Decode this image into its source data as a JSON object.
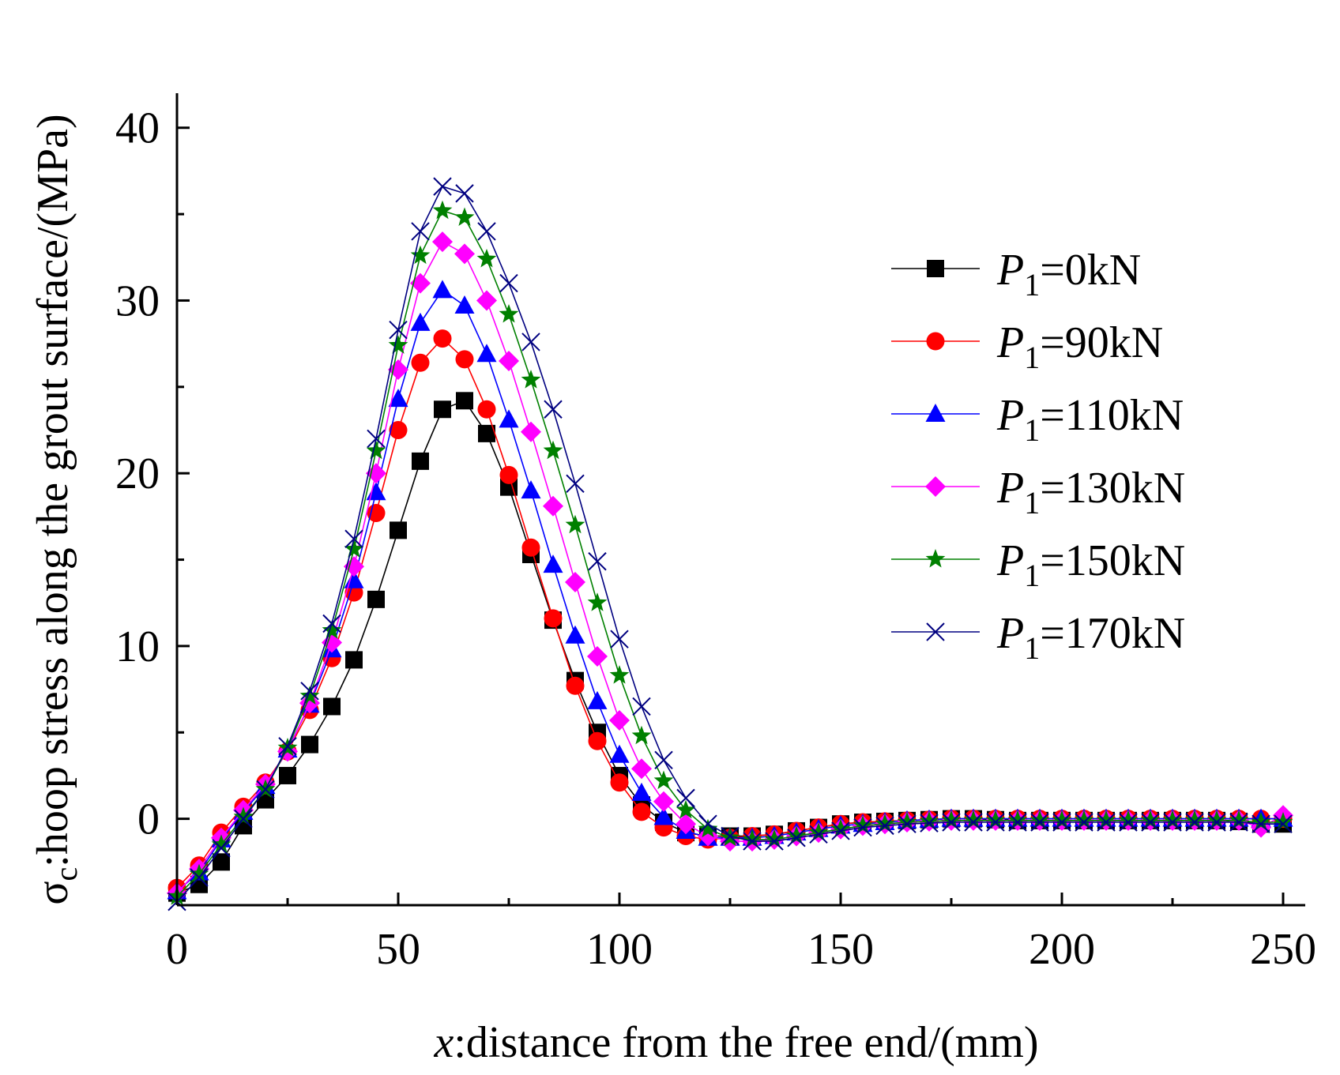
{
  "chart_data": {
    "type": "line",
    "title": "",
    "xlabel_var": "x",
    "xlabel_text": ":distance from the free end/(mm)",
    "ylabel_var": "σ",
    "ylabel_sub": "c",
    "ylabel_text": ":hoop stress along the grout surface/(MPa)",
    "xlim": [
      0,
      255
    ],
    "ylim": [
      -5,
      42
    ],
    "xticks": [
      0,
      50,
      100,
      150,
      200,
      250
    ],
    "yticks": [
      0,
      10,
      20,
      30,
      40
    ],
    "legend_position": "top-right",
    "x": [
      0,
      5,
      10,
      15,
      20,
      25,
      30,
      35,
      40,
      45,
      50,
      55,
      60,
      65,
      70,
      75,
      80,
      85,
      90,
      95,
      100,
      105,
      110,
      115,
      120,
      125,
      130,
      135,
      140,
      145,
      150,
      155,
      160,
      165,
      170,
      175,
      180,
      185,
      190,
      195,
      200,
      205,
      210,
      215,
      220,
      225,
      230,
      235,
      240,
      245,
      250
    ],
    "series": [
      {
        "name": "P1=0kN",
        "legend_var": "P",
        "legend_sub": "1",
        "legend_text": "=0kN",
        "color": "#000000",
        "marker": "square",
        "values": [
          -4.3,
          -3.8,
          -2.5,
          -0.4,
          1.1,
          2.5,
          4.3,
          6.5,
          9.2,
          12.7,
          16.7,
          20.7,
          23.7,
          24.2,
          22.3,
          19.2,
          15.3,
          11.5,
          8.0,
          5.0,
          2.5,
          0.8,
          -0.2,
          -0.8,
          -1.0,
          -1.0,
          -1.0,
          -0.9,
          -0.7,
          -0.5,
          -0.3,
          -0.2,
          -0.15,
          -0.1,
          -0.05,
          0.0,
          0.0,
          -0.05,
          -0.1,
          -0.1,
          -0.1,
          -0.1,
          -0.1,
          -0.1,
          -0.1,
          -0.1,
          -0.1,
          -0.1,
          -0.15,
          -0.3,
          -0.3
        ]
      },
      {
        "name": "P1=90kN",
        "legend_var": "P",
        "legend_sub": "1",
        "legend_text": "=90kN",
        "color": "#ff0000",
        "marker": "circle",
        "values": [
          -4.0,
          -2.7,
          -0.8,
          0.7,
          2.1,
          3.9,
          6.3,
          9.3,
          13.1,
          17.7,
          22.5,
          26.4,
          27.8,
          26.6,
          23.7,
          19.9,
          15.7,
          11.6,
          7.7,
          4.5,
          2.1,
          0.4,
          -0.5,
          -1.0,
          -1.2,
          -1.1,
          -1.0,
          -0.9,
          -0.7,
          -0.5,
          -0.3,
          -0.2,
          -0.15,
          -0.1,
          -0.05,
          0.0,
          0.0,
          0.0,
          0.0,
          0.0,
          0.0,
          0.0,
          0.0,
          0.0,
          0.0,
          0.0,
          0.0,
          0.0,
          0.0,
          0.0,
          0.0
        ]
      },
      {
        "name": "P1=110kN",
        "legend_var": "P",
        "legend_sub": "1",
        "legend_text": "=110kN",
        "color": "#0000ff",
        "marker": "triangle",
        "values": [
          -4.2,
          -3.1,
          -1.2,
          0.4,
          1.9,
          4.0,
          6.6,
          9.8,
          13.8,
          18.9,
          24.3,
          28.7,
          30.6,
          29.7,
          26.9,
          23.1,
          19.0,
          14.7,
          10.6,
          6.8,
          3.7,
          1.5,
          0.1,
          -0.7,
          -1.1,
          -1.1,
          -1.1,
          -1.0,
          -0.8,
          -0.6,
          -0.4,
          -0.3,
          -0.2,
          -0.1,
          -0.05,
          0.0,
          0.0,
          0.0,
          0.0,
          0.0,
          0.0,
          0.0,
          0.0,
          0.0,
          0.0,
          0.0,
          0.0,
          0.0,
          0.0,
          0.0,
          0.0
        ]
      },
      {
        "name": "P1=130kN",
        "legend_var": "P",
        "legend_sub": "1",
        "legend_text": "=130kN",
        "color": "#ff00ff",
        "marker": "diamond",
        "values": [
          -4.3,
          -2.9,
          -1.1,
          0.5,
          2.0,
          3.9,
          6.7,
          10.2,
          14.6,
          20.0,
          26.0,
          31.0,
          33.4,
          32.7,
          30.0,
          26.5,
          22.4,
          18.1,
          13.7,
          9.4,
          5.7,
          2.9,
          1.0,
          -0.3,
          -1.0,
          -1.3,
          -1.3,
          -1.2,
          -1.0,
          -0.8,
          -0.6,
          -0.4,
          -0.3,
          -0.2,
          -0.15,
          -0.1,
          -0.1,
          -0.1,
          -0.1,
          -0.1,
          -0.1,
          -0.1,
          -0.1,
          -0.1,
          -0.1,
          -0.1,
          -0.1,
          -0.1,
          -0.1,
          -0.5,
          0.2
        ]
      },
      {
        "name": "P1=150kN",
        "legend_var": "P",
        "legend_sub": "1",
        "legend_text": "=150kN",
        "color": "#008000",
        "marker": "star",
        "values": [
          -4.5,
          -3.2,
          -1.5,
          0.1,
          1.7,
          4.1,
          7.1,
          10.9,
          15.6,
          21.3,
          27.4,
          32.6,
          35.2,
          34.8,
          32.4,
          29.2,
          25.4,
          21.3,
          17.0,
          12.5,
          8.3,
          4.8,
          2.2,
          0.5,
          -0.6,
          -1.1,
          -1.2,
          -1.2,
          -1.0,
          -0.8,
          -0.6,
          -0.4,
          -0.3,
          -0.2,
          -0.15,
          -0.1,
          -0.1,
          -0.1,
          -0.1,
          -0.1,
          -0.1,
          -0.1,
          -0.1,
          -0.1,
          -0.1,
          -0.1,
          -0.1,
          -0.1,
          -0.1,
          -0.2,
          -0.2
        ]
      },
      {
        "name": "P1=170kN",
        "legend_var": "P",
        "legend_sub": "1",
        "legend_text": "=170kN",
        "color": "#000080",
        "marker": "x",
        "values": [
          -4.8,
          -3.4,
          -1.7,
          0.0,
          1.7,
          4.2,
          7.4,
          11.3,
          16.2,
          22.0,
          28.3,
          34.0,
          36.6,
          36.2,
          34.0,
          31.0,
          27.6,
          23.7,
          19.4,
          14.9,
          10.4,
          6.5,
          3.4,
          1.2,
          -0.3,
          -1.0,
          -1.3,
          -1.3,
          -1.1,
          -0.9,
          -0.7,
          -0.5,
          -0.4,
          -0.3,
          -0.25,
          -0.2,
          -0.2,
          -0.2,
          -0.2,
          -0.2,
          -0.2,
          -0.2,
          -0.2,
          -0.2,
          -0.2,
          -0.2,
          -0.2,
          -0.2,
          -0.2,
          -0.3,
          -0.3
        ]
      }
    ]
  }
}
